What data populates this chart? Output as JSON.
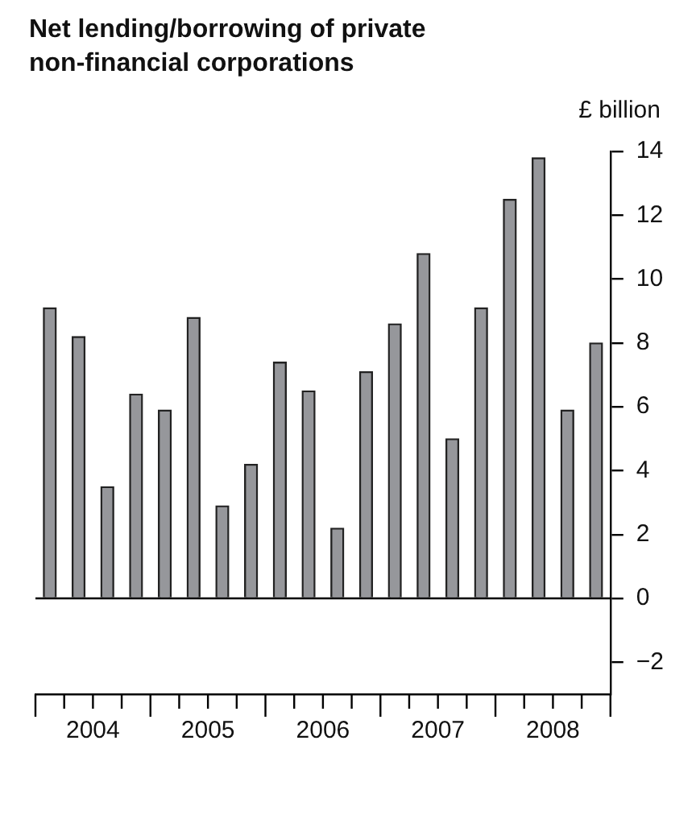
{
  "chart_data": {
    "type": "bar",
    "title": "Net lending/borrowing of private non-financial corporations",
    "ylabel": "£ billion",
    "x": [
      2004.125,
      2004.375,
      2004.625,
      2004.875,
      2005.125,
      2005.375,
      2005.625,
      2005.875,
      2006.125,
      2006.375,
      2006.625,
      2006.875,
      2007.125,
      2007.375,
      2007.625,
      2007.875,
      2008.125,
      2008.375,
      2008.625,
      2008.875
    ],
    "values": [
      9.1,
      8.2,
      3.5,
      6.4,
      5.9,
      8.8,
      2.9,
      4.2,
      7.4,
      6.5,
      2.2,
      7.1,
      8.6,
      10.8,
      5.0,
      9.1,
      12.5,
      13.8,
      5.9,
      8.0
    ],
    "color": "#96979b",
    "ylim": [
      -3,
      14
    ],
    "yticks": [
      -2,
      0,
      2,
      4,
      6,
      8,
      10,
      12,
      14
    ],
    "xlim": [
      2004,
      2009
    ],
    "xticks": [
      {
        "value": 2004,
        "label": null
      },
      {
        "value": 2004.25,
        "label": null
      },
      {
        "value": 2004.5,
        "label": "2004"
      },
      {
        "value": 2004.75,
        "label": null
      },
      {
        "value": 2005,
        "label": null
      },
      {
        "value": 2005.25,
        "label": null
      },
      {
        "value": 2005.5,
        "label": "2005"
      },
      {
        "value": 2005.75,
        "label": null
      },
      {
        "value": 2006,
        "label": null
      },
      {
        "value": 2006.25,
        "label": null
      },
      {
        "value": 2006.5,
        "label": "2006"
      },
      {
        "value": 2006.75,
        "label": null
      },
      {
        "value": 2007,
        "label": null
      },
      {
        "value": 2007.25,
        "label": null
      },
      {
        "value": 2007.5,
        "label": "2007"
      },
      {
        "value": 2007.75,
        "label": null
      },
      {
        "value": 2008,
        "label": null
      },
      {
        "value": 2008.25,
        "label": null
      },
      {
        "value": 2008.5,
        "label": "2008"
      },
      {
        "value": 2008.75,
        "label": null
      },
      {
        "value": 2009,
        "label": null
      }
    ],
    "ref_lines": [
      {
        "axis": "y",
        "value": 0,
        "color": "#000000"
      }
    ],
    "grid": false,
    "legend": false
  }
}
